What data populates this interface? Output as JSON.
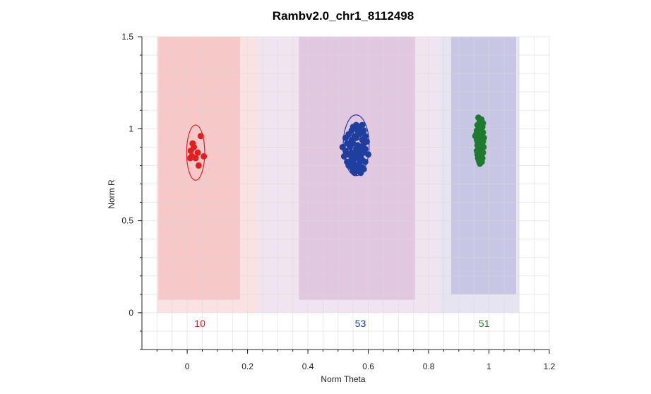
{
  "chart_data": {
    "type": "scatter",
    "title": "Rambv2.0_chr1_8112498",
    "xlabel": "Norm Theta",
    "ylabel": "Norm R",
    "xlim": [
      -0.15,
      1.2
    ],
    "ylim": [
      -0.2,
      1.5
    ],
    "x_ticks": [
      0,
      0.2,
      0.4,
      0.6,
      0.8,
      1,
      1.2
    ],
    "x_tick_labels": [
      "0",
      "0.2",
      "0.4",
      "0.6",
      "0.8",
      "1",
      "1.2"
    ],
    "y_ticks": [
      0,
      0.5,
      1,
      1.5
    ],
    "y_tick_labels": [
      "0",
      "0.5",
      "1",
      "1.5"
    ],
    "grid": true,
    "regions": [
      {
        "fill": "#fbe2e2",
        "x0": -0.1,
        "x1": 0.29,
        "y0": 0,
        "y1": 1.5
      },
      {
        "fill": "#f0e4f0",
        "x0": 0.23,
        "x1": 0.87,
        "y0": 0,
        "y1": 1.5
      },
      {
        "fill": "#e7e4f2",
        "x0": 0.84,
        "x1": 1.1,
        "y0": 0,
        "y1": 1.5
      },
      {
        "fill": "#f6c8c8",
        "x0": -0.095,
        "x1": 0.175,
        "y0": 0.07,
        "y1": 1.5
      },
      {
        "fill": "#e2c7e0",
        "x0": 0.37,
        "x1": 0.755,
        "y0": 0.07,
        "y1": 1.5
      },
      {
        "fill": "#c7c6e4",
        "x0": 0.875,
        "x1": 1.09,
        "y0": 0.1,
        "y1": 1.5
      }
    ],
    "series": [
      {
        "color": "#e02020",
        "count_label": "10",
        "ellipse": {
          "cx": 0.028,
          "cy": 0.87,
          "rx": 0.03,
          "ry": 0.15
        },
        "x": [
          0.018,
          0.045,
          0.022,
          0.012,
          0.035,
          0.016,
          0.028,
          0.01,
          0.038,
          0.055
        ],
        "y": [
          0.92,
          0.96,
          0.9,
          0.88,
          0.87,
          0.85,
          0.84,
          0.84,
          0.8,
          0.85
        ]
      },
      {
        "color": "#1f3fa0",
        "count_label": "53",
        "ellipse": {
          "cx": 0.56,
          "cy": 0.91,
          "rx": 0.043,
          "ry": 0.165
        },
        "x": [
          0.55,
          0.56,
          0.57,
          0.58,
          0.545,
          0.565,
          0.575,
          0.585,
          0.535,
          0.555,
          0.57,
          0.59,
          0.525,
          0.545,
          0.56,
          0.58,
          0.595,
          0.53,
          0.55,
          0.565,
          0.585,
          0.515,
          0.54,
          0.56,
          0.575,
          0.59,
          0.525,
          0.545,
          0.57,
          0.585,
          0.535,
          0.555,
          0.575,
          0.6,
          0.52,
          0.545,
          0.565,
          0.58,
          0.53,
          0.55,
          0.57,
          0.59,
          0.535,
          0.56,
          0.58,
          0.545,
          0.565,
          0.585,
          0.55,
          0.57,
          0.555,
          0.575,
          0.56
        ],
        "y": [
          1.01,
          1.02,
          1.01,
          1.02,
          0.99,
          0.99,
          0.98,
          0.99,
          0.97,
          0.96,
          0.97,
          0.96,
          0.95,
          0.94,
          0.95,
          0.94,
          0.93,
          0.92,
          0.92,
          0.91,
          0.92,
          0.9,
          0.9,
          0.89,
          0.9,
          0.89,
          0.88,
          0.87,
          0.88,
          0.87,
          0.86,
          0.86,
          0.85,
          0.86,
          0.85,
          0.84,
          0.84,
          0.83,
          0.82,
          0.82,
          0.81,
          0.82,
          0.8,
          0.8,
          0.79,
          0.79,
          0.78,
          0.78,
          0.77,
          0.77,
          0.76,
          0.76,
          0.86
        ]
      },
      {
        "color": "#1e7a2f",
        "count_label": "51",
        "ellipse": {
          "cx": 0.97,
          "cy": 0.94,
          "rx": 0.014,
          "ry": 0.13
        },
        "x": [
          0.965,
          0.975,
          0.97,
          0.98,
          0.962,
          0.972,
          0.978,
          0.968,
          0.975,
          0.96,
          0.97,
          0.98,
          0.965,
          0.975,
          0.958,
          0.968,
          0.978,
          0.963,
          0.973,
          0.983,
          0.96,
          0.97,
          0.98,
          0.965,
          0.975,
          0.955,
          0.968,
          0.978,
          0.962,
          0.972,
          0.982,
          0.966,
          0.976,
          0.96,
          0.97,
          0.98,
          0.965,
          0.975,
          0.962,
          0.972,
          0.968,
          0.978,
          0.964,
          0.974,
          0.966,
          0.976,
          0.968,
          0.97,
          0.962,
          0.974,
          0.966
        ],
        "y": [
          1.06,
          1.05,
          1.04,
          1.03,
          1.02,
          1.02,
          1.01,
          1.0,
          1.0,
          0.99,
          0.99,
          0.98,
          0.98,
          0.97,
          0.97,
          0.96,
          0.96,
          0.95,
          0.95,
          0.95,
          0.94,
          0.94,
          0.93,
          0.93,
          0.92,
          0.96,
          0.92,
          0.91,
          0.91,
          0.9,
          0.9,
          0.89,
          0.89,
          0.88,
          0.88,
          0.87,
          0.87,
          0.86,
          0.86,
          0.85,
          0.85,
          0.84,
          0.84,
          0.83,
          0.83,
          0.82,
          0.82,
          0.81,
          0.93,
          0.97,
          1.01
        ]
      }
    ]
  }
}
